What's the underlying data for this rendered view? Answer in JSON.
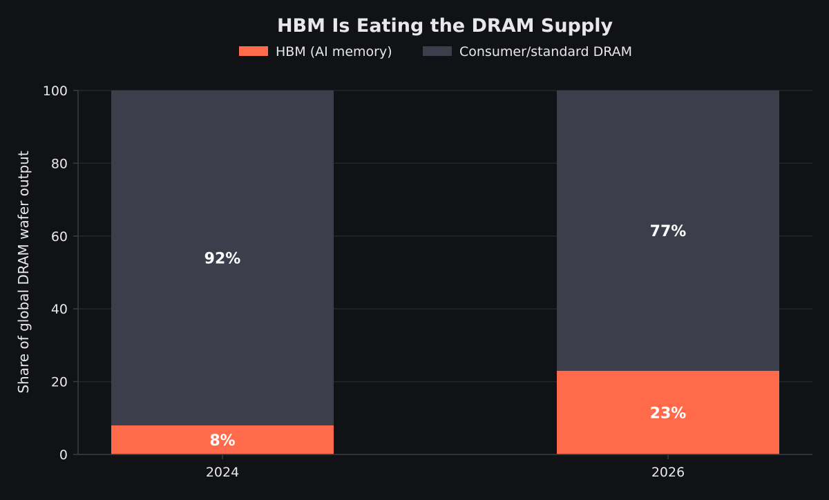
{
  "chart_data": {
    "type": "bar",
    "stacked": true,
    "title": "HBM Is Eating the DRAM Supply",
    "xlabel": "",
    "ylabel": "Share of global DRAM wafer output",
    "categories": [
      "2024",
      "2026"
    ],
    "series": [
      {
        "name": "HBM (AI memory)",
        "values": [
          8,
          23
        ],
        "labels": [
          "8%",
          "23%"
        ],
        "color": "#ff6b4a"
      },
      {
        "name": "Consumer/standard DRAM",
        "values": [
          92,
          77
        ],
        "labels": [
          "92%",
          "77%"
        ],
        "color": "#3c3f4b"
      }
    ],
    "ylim": [
      0,
      100
    ],
    "yticks": [
      0,
      20,
      40,
      60,
      80,
      100
    ],
    "grid": true,
    "legend_position": "top-center",
    "colors": {
      "background": "#111216",
      "text": "#e8e8ea",
      "grid": "#24262c",
      "axis": "#3a3c44"
    }
  }
}
